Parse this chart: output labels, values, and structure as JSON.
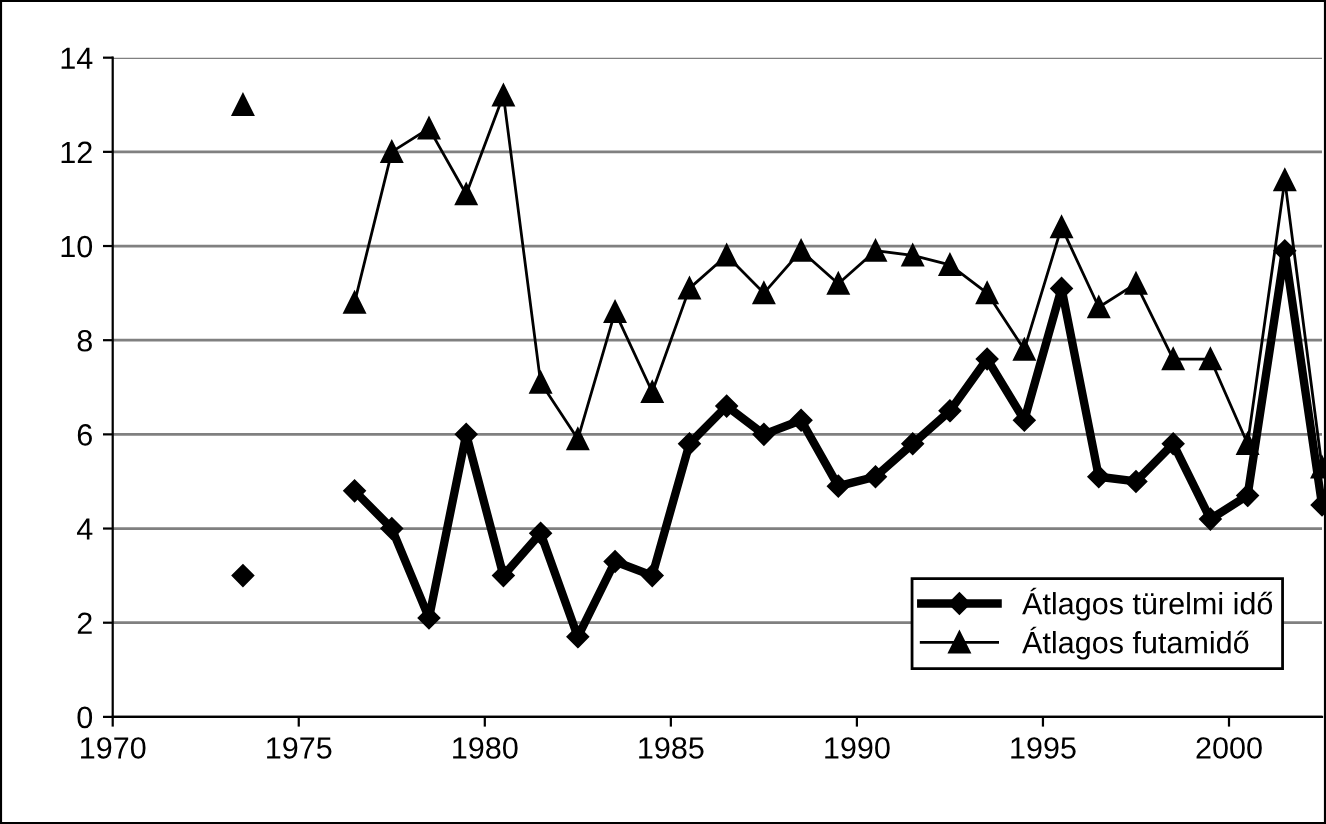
{
  "chart_data": {
    "type": "line",
    "x": [
      1973.5,
      1974.5,
      1975.5,
      1976.5,
      1977.5,
      1978.5,
      1979.5,
      1980.5,
      1981.5,
      1982.5,
      1983.5,
      1984.5,
      1985.5,
      1986.5,
      1987.5,
      1988.5,
      1989.5,
      1990.5,
      1991.5,
      1992.5,
      1993.5,
      1994.5,
      1995.5,
      1996.5,
      1997.5,
      1998.5,
      1999.5,
      2000.5,
      2001.5,
      2002.5
    ],
    "series": [
      {
        "name": "Átlagos türelmi idő",
        "color": "#000000",
        "marker": "diamond",
        "values": [
          3.0,
          null,
          null,
          4.8,
          4.0,
          2.1,
          6.0,
          3.0,
          3.9,
          1.7,
          3.3,
          3.0,
          5.8,
          6.6,
          6.0,
          6.3,
          4.9,
          5.1,
          5.8,
          6.5,
          7.6,
          6.3,
          9.1,
          5.1,
          5.0,
          5.8,
          4.2,
          4.7,
          9.9,
          4.5
        ]
      },
      {
        "name": "Átlagos futamidő",
        "color": "#000000",
        "marker": "triangle",
        "values": [
          13.0,
          null,
          null,
          8.8,
          12.0,
          12.5,
          11.1,
          13.2,
          7.1,
          5.9,
          8.6,
          6.9,
          9.1,
          9.8,
          9.0,
          9.9,
          9.2,
          9.9,
          9.8,
          9.6,
          9.0,
          7.8,
          10.4,
          8.7,
          9.2,
          7.6,
          7.6,
          5.8,
          11.4,
          5.3
        ]
      }
    ],
    "xlim": [
      1970,
      2002.5
    ],
    "xticks": [
      1970,
      1975,
      1980,
      1985,
      1990,
      1995,
      2000
    ],
    "ylim": [
      0,
      14
    ],
    "yticks": [
      0,
      2,
      4,
      6,
      8,
      10,
      12,
      14
    ],
    "grid": "y",
    "legend": "bottom right",
    "line_style": "solid"
  }
}
